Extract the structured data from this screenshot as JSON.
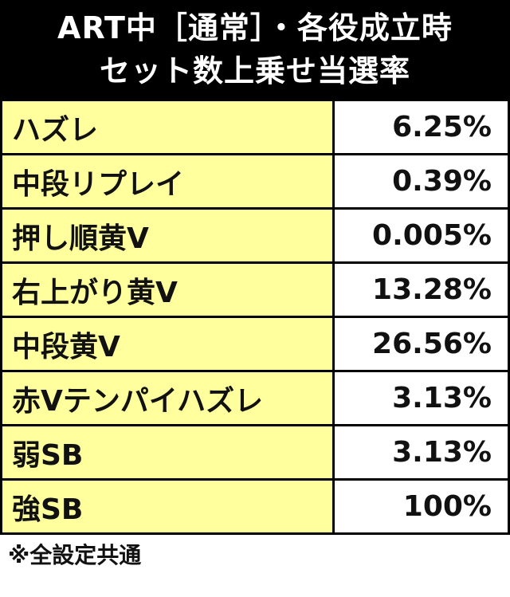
{
  "header": {
    "title_lines": [
      "ART中［通常］・各役成立時",
      "セット数上乗せ当選率"
    ]
  },
  "table": {
    "rows": [
      [
        "ハズレ",
        "6.25%"
      ],
      [
        "中段リプレイ",
        "0.39%"
      ],
      [
        "押し順黄V",
        "0.005%"
      ],
      [
        "右上がり黄V",
        "13.28%"
      ],
      [
        "中段黄V",
        "26.56%"
      ],
      [
        "赤Vテンパイハズレ",
        "3.13%"
      ],
      [
        "弱SB",
        "3.13%"
      ],
      [
        "強SB",
        "100%"
      ]
    ]
  },
  "footnote": "※全設定共通"
}
